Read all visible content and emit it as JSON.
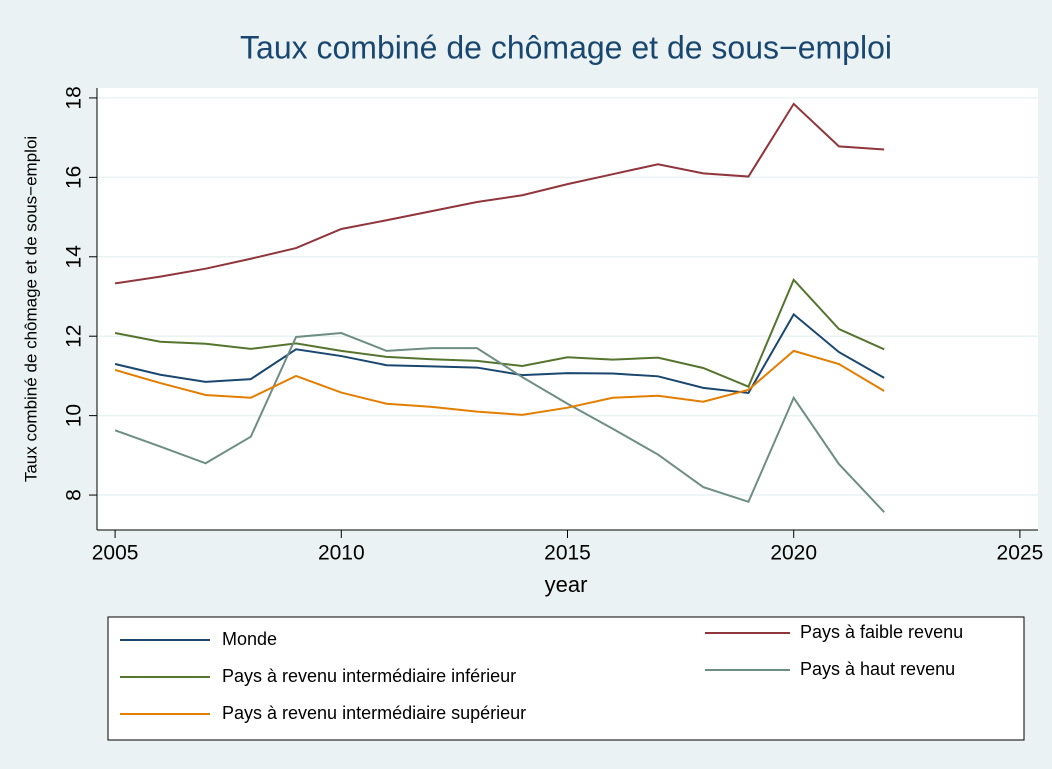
{
  "chart_data": {
    "type": "line",
    "title": "Taux combiné de chômage et de sous−emploi",
    "x_label": "year",
    "y_label": "Taux combiné de chômage et de sous−emploi",
    "x": [
      2005,
      2006,
      2007,
      2008,
      2009,
      2010,
      2011,
      2012,
      2013,
      2014,
      2015,
      2016,
      2017,
      2018,
      2019,
      2020,
      2021,
      2022
    ],
    "series": [
      {
        "name": "Monde",
        "color": "#1a476f",
        "values": [
          11.3,
          11.03,
          10.85,
          10.92,
          11.67,
          11.5,
          11.27,
          11.24,
          11.21,
          11.02,
          11.07,
          11.06,
          10.99,
          10.7,
          10.57,
          12.55,
          11.6,
          10.95
        ]
      },
      {
        "name": "Pays à faible revenu",
        "color": "#90353b",
        "values": [
          13.33,
          13.5,
          13.7,
          13.95,
          14.22,
          14.7,
          14.92,
          15.15,
          15.38,
          15.55,
          15.83,
          16.08,
          16.33,
          16.1,
          16.02,
          17.85,
          16.78,
          16.7
        ]
      },
      {
        "name": "Pays à revenu intermédiaire inférieur",
        "color": "#55752f",
        "values": [
          12.08,
          11.86,
          11.81,
          11.68,
          11.82,
          11.63,
          11.48,
          11.42,
          11.38,
          11.25,
          11.47,
          11.41,
          11.46,
          11.2,
          10.73,
          13.42,
          12.18,
          11.67
        ]
      },
      {
        "name": "Pays à haut revenu",
        "color": "#6e8e84",
        "values": [
          9.63,
          9.22,
          8.8,
          9.47,
          11.98,
          12.08,
          11.63,
          11.7,
          11.7,
          10.97,
          10.3,
          9.67,
          9.02,
          8.2,
          7.83,
          10.45,
          8.78,
          7.57
        ]
      },
      {
        "name": "Pays à revenu intermédiaire supérieur",
        "color": "#e37e00",
        "values": [
          11.15,
          10.82,
          10.52,
          10.45,
          11.0,
          10.58,
          10.3,
          10.22,
          10.1,
          10.02,
          10.2,
          10.45,
          10.5,
          10.35,
          10.65,
          11.63,
          11.3,
          10.62
        ]
      }
    ],
    "xlim": [
      2004.6,
      2025.4
    ],
    "xticks": [
      2005,
      2010,
      2015,
      2020,
      2025
    ],
    "ylim": [
      7.12,
      18.25
    ],
    "yticks": [
      8,
      10,
      12,
      14,
      16,
      18
    ],
    "grid": true,
    "legend_position": "bottom"
  }
}
